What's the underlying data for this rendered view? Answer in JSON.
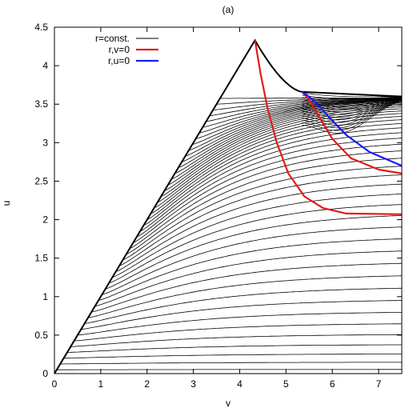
{
  "chart_data": {
    "type": "line",
    "title": "(a)",
    "xlabel": "v",
    "ylabel": "u",
    "xlim": [
      0,
      7.5
    ],
    "ylim": [
      0,
      4.5
    ],
    "xticks": [
      "0",
      "1",
      "2",
      "3",
      "4",
      "5",
      "6",
      "7"
    ],
    "yticks": [
      "0",
      "0.5",
      "1",
      "1.5",
      "2",
      "2.5",
      "3",
      "3.5",
      "4",
      "4.5"
    ],
    "grid": false,
    "legend_position": "top-left",
    "series": [
      {
        "name": "r=const.",
        "color": "#000000",
        "description": "family of constant-r contour curves",
        "boundary": [
          [
            0,
            0
          ],
          [
            4.33,
            4.33
          ],
          [
            5.35,
            3.66
          ],
          [
            7.5,
            3.6
          ]
        ]
      },
      {
        "name": "r,v=0",
        "color": "#e31a1c",
        "points": [
          [
            4.33,
            4.33
          ],
          [
            4.45,
            3.9
          ],
          [
            4.6,
            3.45
          ],
          [
            4.8,
            3.0
          ],
          [
            5.05,
            2.6
          ],
          [
            5.4,
            2.3
          ],
          [
            5.8,
            2.15
          ],
          [
            6.3,
            2.08
          ],
          [
            7.5,
            2.07
          ]
        ],
        "points_b": [
          [
            5.35,
            3.66
          ],
          [
            5.5,
            3.55
          ],
          [
            5.7,
            3.35
          ],
          [
            6.0,
            3.05
          ],
          [
            6.4,
            2.8
          ],
          [
            7.0,
            2.65
          ],
          [
            7.5,
            2.6
          ]
        ]
      },
      {
        "name": "r,u=0",
        "color": "#1a1aff",
        "points": [
          [
            5.35,
            3.66
          ],
          [
            5.6,
            3.55
          ],
          [
            5.9,
            3.35
          ],
          [
            6.3,
            3.1
          ],
          [
            6.8,
            2.88
          ],
          [
            7.5,
            2.7
          ]
        ]
      }
    ]
  }
}
